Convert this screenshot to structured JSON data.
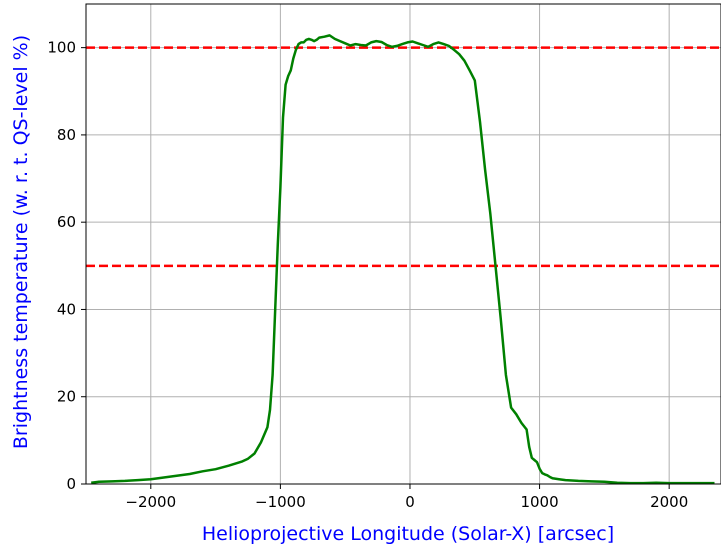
{
  "chart_data": {
    "type": "line",
    "title": "",
    "xlabel": "Helioprojective Longitude (Solar-X) [arcsec]",
    "ylabel": "Brightness temperature (w. r. t. QS-level %)",
    "xlim": [
      -2500,
      2400
    ],
    "ylim": [
      0,
      110
    ],
    "xticks": [
      -2000,
      -1000,
      0,
      1000,
      2000
    ],
    "xtick_labels": [
      "−2000",
      "−1000",
      "0",
      "1000",
      "2000"
    ],
    "yticks": [
      0,
      20,
      40,
      60,
      80,
      100
    ],
    "ytick_labels": [
      "0",
      "20",
      "40",
      "60",
      "80",
      "100"
    ],
    "grid": true,
    "label_color": "#0000ff",
    "reference_lines": [
      {
        "y": 100,
        "color": "#ff0000",
        "style": "dashed"
      },
      {
        "y": 50,
        "color": "#ff0000",
        "style": "dashed"
      }
    ],
    "series": [
      {
        "color": "#008000",
        "x": [
          -2460,
          -2400,
          -2300,
          -2200,
          -2100,
          -2000,
          -1900,
          -1800,
          -1700,
          -1600,
          -1500,
          -1400,
          -1300,
          -1250,
          -1200,
          -1150,
          -1100,
          -1080,
          -1060,
          -1040,
          -1020,
          -1000,
          -980,
          -960,
          -940,
          -920,
          -900,
          -880,
          -860,
          -840,
          -820,
          -800,
          -780,
          -760,
          -740,
          -720,
          -700,
          -660,
          -620,
          -580,
          -540,
          -500,
          -460,
          -420,
          -380,
          -340,
          -300,
          -260,
          -220,
          -180,
          -140,
          -100,
          -60,
          -20,
          20,
          60,
          100,
          140,
          180,
          220,
          260,
          300,
          340,
          380,
          420,
          460,
          500,
          540,
          580,
          620,
          660,
          700,
          740,
          780,
          820,
          860,
          900,
          920,
          940,
          960,
          980,
          1000,
          1020,
          1040,
          1060,
          1080,
          1100,
          1150,
          1200,
          1250,
          1300,
          1400,
          1500,
          1550,
          1600,
          1700,
          1800,
          1900,
          2000,
          2100,
          2200,
          2300,
          2350
        ],
        "y": [
          0.3,
          0.5,
          0.6,
          0.7,
          0.9,
          1.1,
          1.5,
          1.9,
          2.3,
          2.9,
          3.4,
          4.2,
          5.1,
          5.8,
          7.0,
          9.5,
          13.0,
          17.0,
          25.0,
          40.0,
          55.0,
          68.0,
          84.0,
          91.5,
          93.5,
          94.8,
          97.5,
          99.5,
          100.8,
          101.2,
          101.2,
          101.8,
          102.0,
          101.8,
          101.5,
          101.8,
          102.3,
          102.5,
          102.8,
          102.0,
          101.5,
          101.0,
          100.5,
          100.8,
          100.6,
          100.5,
          101.2,
          101.5,
          101.3,
          100.6,
          100.2,
          100.4,
          100.8,
          101.2,
          101.4,
          101.0,
          100.6,
          100.2,
          100.8,
          101.2,
          100.8,
          100.4,
          99.5,
          98.5,
          97.0,
          94.8,
          92.5,
          83.0,
          72.0,
          62.0,
          50.0,
          38.0,
          25.0,
          17.5,
          16.0,
          14.0,
          12.5,
          8.5,
          6.0,
          5.5,
          5.0,
          3.5,
          2.5,
          2.2,
          2.0,
          1.6,
          1.3,
          1.1,
          0.9,
          0.8,
          0.7,
          0.6,
          0.5,
          0.4,
          0.3,
          0.2,
          0.2,
          0.3,
          0.2,
          0.2,
          0.2,
          0.2,
          0.2
        ]
      }
    ]
  }
}
